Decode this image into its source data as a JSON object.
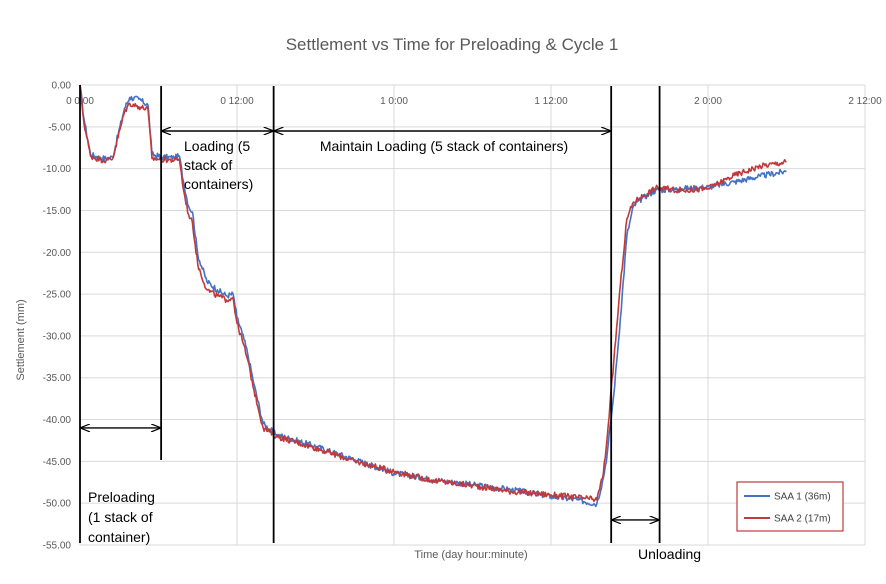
{
  "chart_data": {
    "type": "line",
    "title": "Settlement vs Time for Preloading & Cycle 1",
    "xlabel": "Time (day hour:minute)",
    "ylabel": "Settlement (mm)",
    "x_unit": "hours",
    "xlim": [
      0,
      60
    ],
    "ylim": [
      -55,
      0
    ],
    "grid": true,
    "legend_position": "bottom-right",
    "x_ticks": [
      {
        "value": 0,
        "label": "0 0:00"
      },
      {
        "value": 12,
        "label": "0 12:00"
      },
      {
        "value": 24,
        "label": "1 0:00"
      },
      {
        "value": 36,
        "label": "1 12:00"
      },
      {
        "value": 48,
        "label": "2 0:00"
      },
      {
        "value": 60,
        "label": "2 12:00"
      }
    ],
    "y_ticks": [
      {
        "value": 0,
        "label": "0.00"
      },
      {
        "value": -5,
        "label": "-5.00"
      },
      {
        "value": -10,
        "label": "-10.00"
      },
      {
        "value": -15,
        "label": "-15.00"
      },
      {
        "value": -20,
        "label": "-20.00"
      },
      {
        "value": -25,
        "label": "-25.00"
      },
      {
        "value": -30,
        "label": "-30.00"
      },
      {
        "value": -35,
        "label": "-35.00"
      },
      {
        "value": -40,
        "label": "-40.00"
      },
      {
        "value": -45,
        "label": "-45.00"
      },
      {
        "value": -50,
        "label": "-50.00"
      },
      {
        "value": -55,
        "label": "-55.00"
      }
    ],
    "series": [
      {
        "name": "SAA 1 (36m)",
        "color": "#4472c4",
        "x": [
          0,
          0.3,
          0.8,
          1.5,
          2,
          2.5,
          3.4,
          3.8,
          4.5,
          5.2,
          5.5,
          6.2,
          7.2,
          7.6,
          7.9,
          8.3,
          8.6,
          9,
          9.7,
          10.5,
          11.2,
          11.7,
          12,
          12.4,
          12.8,
          13.3,
          14,
          15,
          18,
          21,
          24,
          27,
          30,
          33,
          36,
          38,
          39.5,
          40,
          40.3,
          40.8,
          41.3,
          41.8,
          42.3,
          43,
          44,
          46,
          48,
          50,
          52,
          54
        ],
        "y": [
          0,
          -4,
          -8.3,
          -8.7,
          -8.8,
          -8.6,
          -2.8,
          -1.5,
          -1.7,
          -2.4,
          -8.3,
          -8.6,
          -8.7,
          -8.5,
          -11.5,
          -14.5,
          -15.2,
          -20.3,
          -23.5,
          -24.5,
          -25.2,
          -25,
          -27.8,
          -29.7,
          -32,
          -35.8,
          -40.5,
          -41.8,
          -43.2,
          -44.8,
          -46.4,
          -47.2,
          -47.8,
          -48.4,
          -49.2,
          -49.6,
          -50.1,
          -47,
          -44,
          -37,
          -28,
          -18,
          -14.5,
          -13.5,
          -12.6,
          -12.4,
          -12.2,
          -11.6,
          -10.9,
          -10.3
        ]
      },
      {
        "name": "SAA 2 (17m)",
        "color": "#c0393b",
        "x": [
          0,
          0.3,
          0.8,
          1.5,
          2,
          2.5,
          3.4,
          3.8,
          4.5,
          5.2,
          5.5,
          6.2,
          7.2,
          7.6,
          7.9,
          8.3,
          8.6,
          9,
          9.7,
          10.5,
          11.2,
          11.7,
          12,
          12.4,
          12.8,
          13.3,
          14,
          15,
          18,
          21,
          24,
          27,
          30,
          33,
          36,
          38,
          39.5,
          40,
          40.3,
          40.8,
          41.3,
          41.8,
          42.3,
          43,
          44,
          46,
          48,
          50,
          52,
          54
        ],
        "y": [
          0,
          -4.5,
          -8.5,
          -8.9,
          -9,
          -8.8,
          -3.2,
          -2.2,
          -2.6,
          -2.9,
          -8.8,
          -8.9,
          -9,
          -8.8,
          -12.5,
          -15.5,
          -16.5,
          -21.5,
          -24.5,
          -25.2,
          -25.7,
          -25.4,
          -28.5,
          -30.5,
          -32.8,
          -36.5,
          -41,
          -42,
          -43.4,
          -45,
          -46.2,
          -47.3,
          -47.9,
          -48.6,
          -49,
          -49.3,
          -49.6,
          -46.5,
          -42,
          -33,
          -24,
          -16,
          -14,
          -13.3,
          -12.3,
          -12.6,
          -12.4,
          -10.8,
          -9.7,
          -9.2
        ]
      }
    ],
    "phase_lines_x": [
      0,
      6.2,
      14.8,
      40.6,
      44.3
    ],
    "annotations": [
      {
        "id": "preloading",
        "lines": [
          "Preloading",
          "(1 stack of",
          "container)"
        ]
      },
      {
        "id": "loading",
        "lines": [
          "Loading (5",
          "stack of",
          "containers)"
        ]
      },
      {
        "id": "maintain",
        "lines": [
          "Maintain Loading (5 stack of containers)"
        ]
      },
      {
        "id": "unloading",
        "lines": [
          "Unloading"
        ]
      }
    ],
    "arrows": [
      {
        "id": "preloading-arrow",
        "from": 0,
        "to": 6.2,
        "y": -41
      },
      {
        "id": "loading-arrow",
        "from": 6.2,
        "to": 14.8,
        "y": -5.5
      },
      {
        "id": "maintain-arrow",
        "from": 14.8,
        "to": 40.6,
        "y": -5.5
      },
      {
        "id": "unloading-arrow",
        "from": 40.6,
        "to": 44.3,
        "y": -52
      }
    ]
  }
}
